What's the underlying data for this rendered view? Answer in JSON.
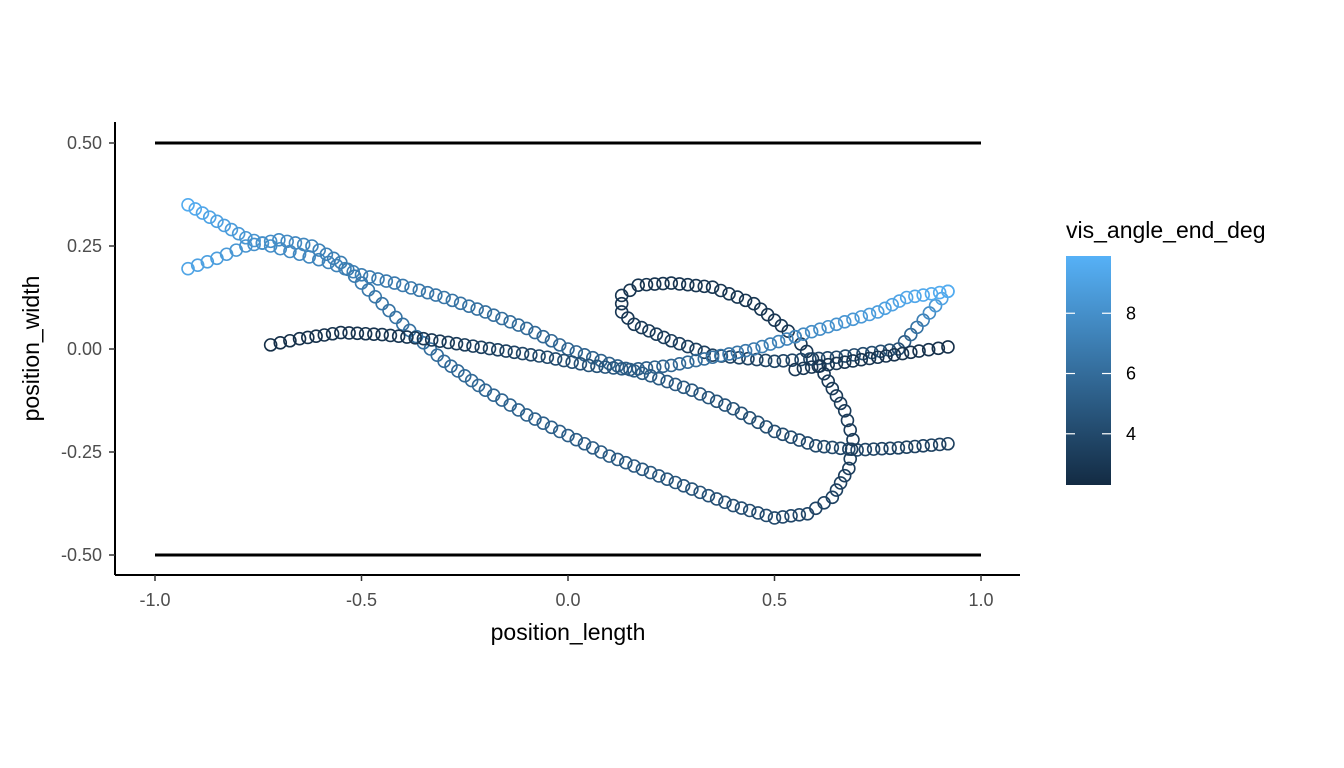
{
  "chart_data": {
    "type": "scatter",
    "xlabel": "position_length",
    "ylabel": "position_width",
    "xlim": [
      -1.0,
      1.0
    ],
    "ylim": [
      -0.5,
      0.5
    ],
    "x_ticks": [
      "-1.0",
      "-0.5",
      "0.0",
      "0.5",
      "1.0"
    ],
    "y_ticks": [
      "0.50",
      "0.25",
      "0.00",
      "-0.25",
      "-0.50"
    ],
    "grid": false,
    "boundary_lines_y": [
      0.5,
      -0.5
    ],
    "marker": "open-circle",
    "legend": {
      "title": "vis_angle_end_deg",
      "type": "colorbar",
      "position": "right",
      "range": [
        2.3,
        9.9
      ],
      "ticks": [
        "8",
        "6",
        "4"
      ],
      "color_low": "#132B43",
      "color_high": "#56B1F7"
    },
    "series": [
      {
        "points": [
          [
            -0.92,
            0.35,
            9.6
          ],
          [
            -0.85,
            0.31,
            9.0
          ],
          [
            -0.78,
            0.27,
            8.4
          ],
          [
            -0.72,
            0.25,
            7.9
          ],
          [
            -0.65,
            0.23,
            7.6
          ],
          [
            -0.58,
            0.21,
            7.3
          ],
          [
            -0.5,
            0.18,
            7.0
          ],
          [
            -0.42,
            0.16,
            6.8
          ],
          [
            -0.3,
            0.125,
            6.5
          ],
          [
            -0.2,
            0.09,
            6.2
          ],
          [
            -0.1,
            0.05,
            5.9
          ],
          [
            0.0,
            0.0,
            5.6
          ],
          [
            0.1,
            -0.035,
            5.3
          ],
          [
            0.2,
            -0.065,
            5.0
          ],
          [
            0.3,
            -0.1,
            4.8
          ],
          [
            0.4,
            -0.145,
            4.5
          ],
          [
            0.5,
            -0.2,
            4.2
          ],
          [
            0.6,
            -0.235,
            4.0
          ],
          [
            0.7,
            -0.245,
            3.8
          ],
          [
            0.8,
            -0.24,
            3.6
          ],
          [
            0.92,
            -0.23,
            3.5
          ]
        ]
      },
      {
        "points": [
          [
            -0.92,
            0.195,
            9.2
          ],
          [
            -0.85,
            0.22,
            8.8
          ],
          [
            -0.78,
            0.25,
            8.2
          ],
          [
            -0.7,
            0.265,
            7.8
          ],
          [
            -0.62,
            0.25,
            7.4
          ],
          [
            -0.55,
            0.21,
            7.0
          ],
          [
            -0.5,
            0.16,
            6.8
          ],
          [
            -0.45,
            0.11,
            6.5
          ],
          [
            -0.4,
            0.06,
            6.3
          ],
          [
            -0.3,
            -0.03,
            6.0
          ],
          [
            -0.2,
            -0.1,
            5.7
          ],
          [
            -0.1,
            -0.16,
            5.4
          ],
          [
            0.0,
            -0.21,
            5.2
          ],
          [
            0.1,
            -0.26,
            5.0
          ],
          [
            0.2,
            -0.3,
            4.8
          ],
          [
            0.3,
            -0.34,
            4.6
          ],
          [
            0.4,
            -0.38,
            4.3
          ],
          [
            0.5,
            -0.41,
            4.0
          ],
          [
            0.58,
            -0.4,
            3.8
          ],
          [
            0.64,
            -0.36,
            3.6
          ],
          [
            0.68,
            -0.29,
            3.4
          ],
          [
            0.69,
            -0.22,
            3.3
          ],
          [
            0.67,
            -0.15,
            3.2
          ],
          [
            0.62,
            -0.06,
            3.1
          ],
          [
            0.55,
            0.03,
            3.0
          ],
          [
            0.45,
            0.11,
            2.9
          ],
          [
            0.35,
            0.15,
            2.9
          ],
          [
            0.25,
            0.16,
            2.8
          ],
          [
            0.17,
            0.155,
            2.8
          ],
          [
            0.13,
            0.13,
            2.9
          ],
          [
            0.13,
            0.09,
            3.0
          ],
          [
            0.16,
            0.06,
            3.1
          ],
          [
            0.25,
            0.02,
            3.3
          ],
          [
            0.35,
            -0.015,
            3.5
          ],
          [
            0.5,
            -0.03,
            3.7
          ],
          [
            0.65,
            -0.02,
            4.0
          ],
          [
            0.8,
            0.0,
            4.3
          ],
          [
            0.92,
            0.14,
            9.8
          ]
        ]
      },
      {
        "points": [
          [
            -0.72,
            0.01,
            2.5
          ],
          [
            -0.65,
            0.025,
            2.6
          ],
          [
            -0.55,
            0.04,
            2.7
          ],
          [
            -0.45,
            0.035,
            2.8
          ],
          [
            -0.35,
            0.025,
            3.0
          ],
          [
            -0.25,
            0.01,
            3.3
          ],
          [
            -0.15,
            -0.005,
            3.6
          ],
          [
            -0.05,
            -0.02,
            4.0
          ],
          [
            0.05,
            -0.04,
            4.5
          ],
          [
            0.15,
            -0.05,
            5.0
          ],
          [
            0.25,
            -0.04,
            5.6
          ],
          [
            0.35,
            -0.02,
            6.2
          ],
          [
            0.45,
            0.0,
            6.8
          ],
          [
            0.55,
            0.03,
            7.5
          ],
          [
            0.65,
            0.06,
            8.2
          ],
          [
            0.75,
            0.09,
            8.8
          ],
          [
            0.82,
            0.125,
            9.3
          ],
          [
            0.92,
            0.14,
            9.6
          ]
        ]
      },
      {
        "points": [
          [
            0.55,
            -0.05,
            3.0
          ],
          [
            0.65,
            -0.035,
            2.9
          ],
          [
            0.75,
            -0.02,
            2.8
          ],
          [
            0.85,
            -0.005,
            2.7
          ],
          [
            0.92,
            0.005,
            2.6
          ]
        ]
      }
    ]
  }
}
